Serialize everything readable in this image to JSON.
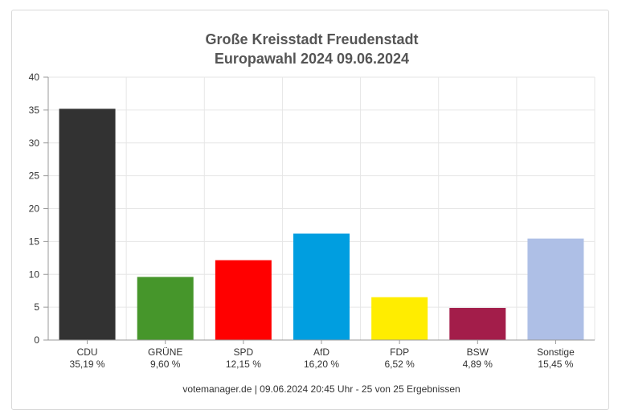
{
  "chart_data": {
    "type": "bar",
    "title": "Große Kreisstadt Freudenstadt",
    "subtitle": "Europawahl 2024 09.06.2024",
    "xlabel": "",
    "ylabel": "",
    "ylim": [
      0,
      40
    ],
    "yticks": [
      "0",
      "5",
      "10",
      "15",
      "20",
      "25",
      "30",
      "35",
      "40"
    ],
    "grid": true,
    "legend": "none",
    "categories": [
      "CDU",
      "GRÜNE",
      "SPD",
      "AfD",
      "FDP",
      "BSW",
      "Sonstige"
    ],
    "values": [
      35.19,
      9.6,
      12.15,
      16.2,
      6.52,
      4.89,
      15.45
    ],
    "value_labels": [
      "35,19 %",
      "9,60 %",
      "12,15 %",
      "16,20 %",
      "6,52 %",
      "4,89 %",
      "15,45 %"
    ],
    "colors": [
      "#323232",
      "#46962b",
      "#ff0000",
      "#009ee0",
      "#ffed00",
      "#a31d4a",
      "#aebfe6"
    ],
    "footer": "votemanager.de | 09.06.2024 20:45 Uhr - 25 von 25 Ergebnissen"
  }
}
